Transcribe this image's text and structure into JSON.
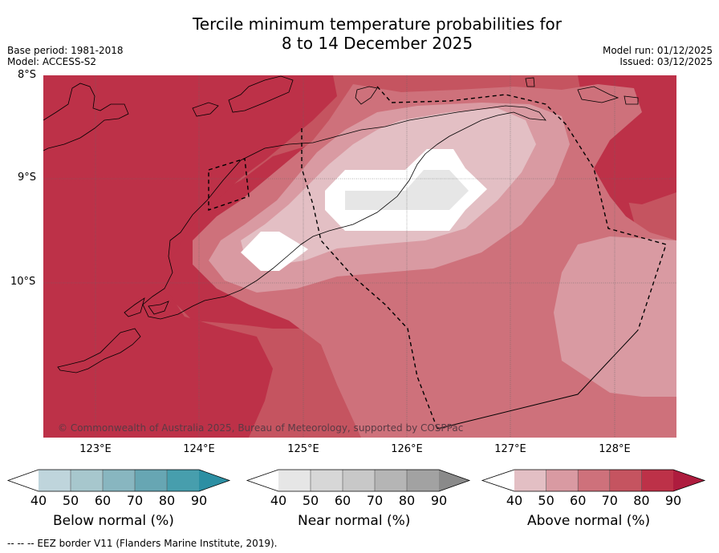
{
  "header": {
    "title_line1": "Tercile minimum temperature probabilities for",
    "title_line2": "8 to 14 December 2025",
    "base_period": "Base period: 1981-2018",
    "model": "Model: ACCESS-S2",
    "model_run": "Model run: 01/12/2025",
    "issued": "Issued: 03/12/2025"
  },
  "map": {
    "lat_labels": [
      "8°S",
      "9°S",
      "10°S"
    ],
    "lon_labels": [
      "123°E",
      "124°E",
      "125°E",
      "126°E",
      "127°E",
      "128°E"
    ],
    "copyright": "© Commonwealth of Australia 2025, Bureau of Meteorology, supported by COSPPac",
    "colors": {
      "above_90": "#ae1c3e",
      "above_80": "#bd3148",
      "above_70": "#c55460",
      "above_60": "#ce717b",
      "above_50": "#d99aa2",
      "above_40": "#e3bfc4",
      "near_40": "#e6e6e6",
      "white": "#ffffff"
    }
  },
  "colorbars": [
    {
      "label": "Below normal (%)",
      "ticks": [
        "40",
        "50",
        "60",
        "70",
        "80",
        "90"
      ],
      "colors": [
        "#bfd5dc",
        "#a7c7cd",
        "#88b6c0",
        "#67a6b3",
        "#479ead",
        "#2c8fa3"
      ]
    },
    {
      "label": "Near normal (%)",
      "ticks": [
        "40",
        "50",
        "60",
        "70",
        "80",
        "90"
      ],
      "colors": [
        "#e6e6e6",
        "#d7d7d7",
        "#c8c8c8",
        "#b5b5b5",
        "#a2a2a2",
        "#8a8a8a"
      ]
    },
    {
      "label": "Above normal (%)",
      "ticks": [
        "40",
        "50",
        "60",
        "70",
        "80",
        "90"
      ],
      "colors": [
        "#e3bfc4",
        "#d99aa2",
        "#ce717b",
        "#c55460",
        "#bd3148",
        "#ae1c3e"
      ]
    }
  ],
  "footer": {
    "eez_note": "--  --  -- EEZ border V11 (Flanders Marine Institute, 2019)."
  }
}
